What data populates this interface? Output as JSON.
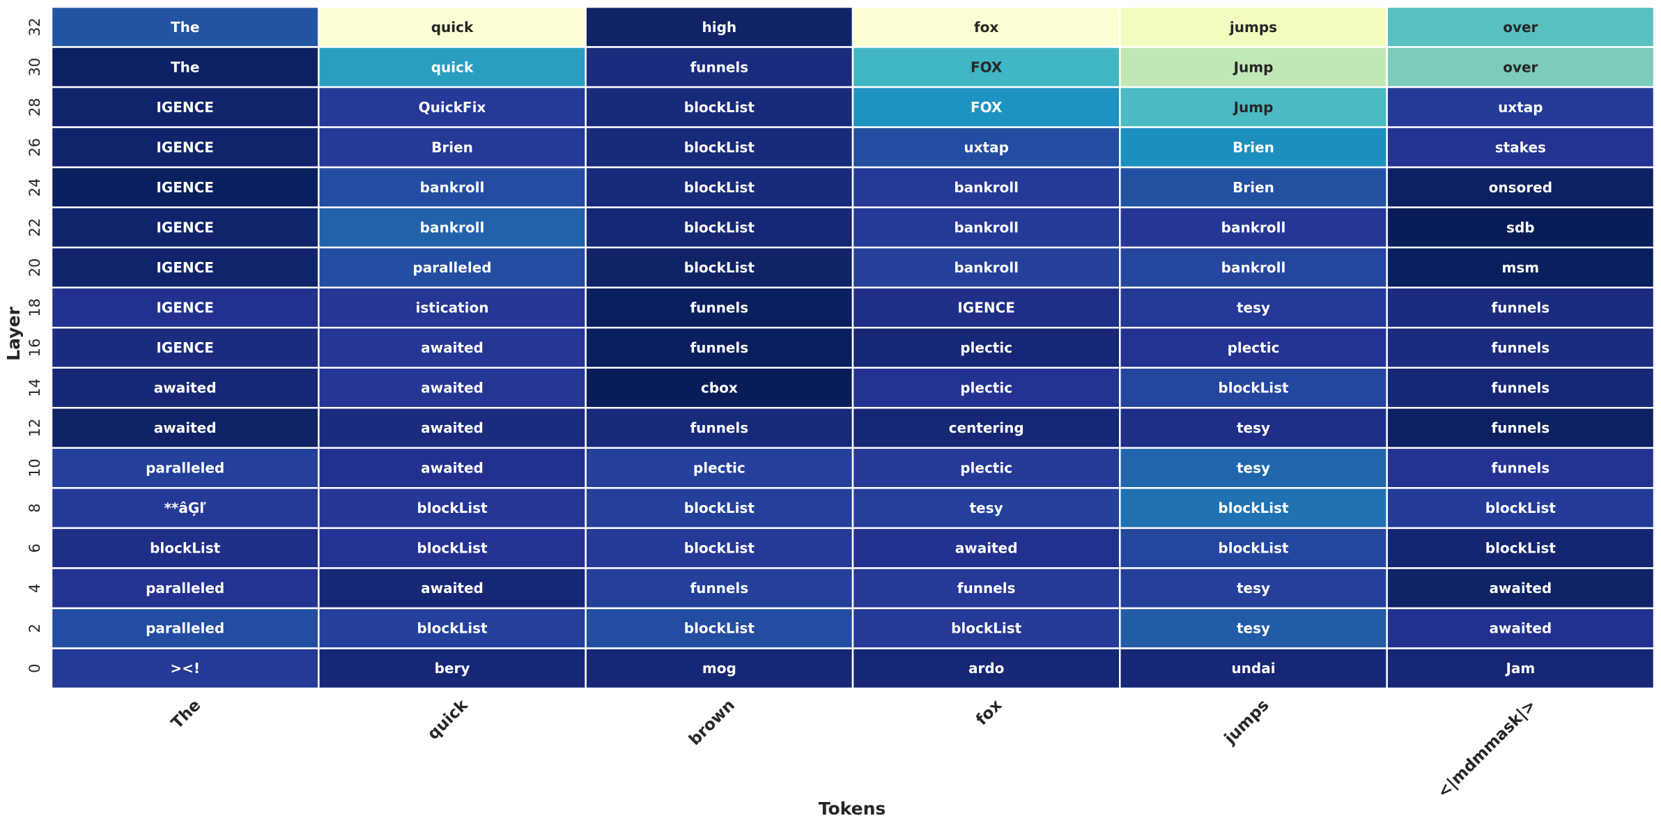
{
  "chart_data": {
    "type": "heatmap",
    "xlabel": "Tokens",
    "ylabel": "Layer",
    "x_tick_labels": [
      "The",
      "quick",
      "brown",
      "fox",
      "jumps",
      "<|mdmmask|>"
    ],
    "y_tick_labels": [
      "32",
      "30",
      "28",
      "26",
      "24",
      "22",
      "20",
      "18",
      "16",
      "14",
      "12",
      "10",
      "8",
      "6",
      "4",
      "2",
      "0"
    ],
    "colormap": "YlGnBu",
    "grid_color": "#ffffff",
    "dark_text_color": "#262626",
    "light_text_color": "#ffffff",
    "rows": [
      {
        "layer": "32",
        "tokens": [
          "The",
          "quick",
          "high",
          "fox",
          "jumps",
          "over"
        ],
        "intensity": [
          0.78,
          0.02,
          0.97,
          0.02,
          0.08,
          0.45
        ]
      },
      {
        "layer": "30",
        "tokens": [
          "The",
          "quick",
          "funnels",
          "FOX",
          "Jump",
          "over"
        ],
        "intensity": [
          0.98,
          0.58,
          0.92,
          0.5,
          0.26,
          0.38
        ]
      },
      {
        "layer": "28",
        "tokens": [
          "IGENCE",
          "QuickFix",
          "blockList",
          "FOX",
          "Jump",
          "uxtap"
        ],
        "intensity": [
          0.96,
          0.86,
          0.93,
          0.62,
          0.48,
          0.86
        ]
      },
      {
        "layer": "26",
        "tokens": [
          "IGENCE",
          "Brien",
          "blockList",
          "uxtap",
          "Brien",
          "stakes"
        ],
        "intensity": [
          0.96,
          0.86,
          0.93,
          0.8,
          0.63,
          0.88
        ]
      },
      {
        "layer": "24",
        "tokens": [
          "IGENCE",
          "bankroll",
          "blockList",
          "bankroll",
          "Brien",
          "onsored"
        ],
        "intensity": [
          0.99,
          0.8,
          0.93,
          0.86,
          0.79,
          0.98
        ]
      },
      {
        "layer": "22",
        "tokens": [
          "IGENCE",
          "bankroll",
          "blockList",
          "bankroll",
          "bankroll",
          "sdb"
        ],
        "intensity": [
          0.96,
          0.74,
          0.94,
          0.86,
          0.87,
          1.0
        ]
      },
      {
        "layer": "20",
        "tokens": [
          "IGENCE",
          "paralleled",
          "blockList",
          "bankroll",
          "bankroll",
          "msm"
        ],
        "intensity": [
          0.96,
          0.8,
          0.97,
          0.84,
          0.82,
          0.99
        ]
      },
      {
        "layer": "18",
        "tokens": [
          "IGENCE",
          "istication",
          "funnels",
          "IGENCE",
          "tesy",
          "funnels"
        ],
        "intensity": [
          0.89,
          0.87,
          0.99,
          0.9,
          0.86,
          0.92
        ]
      },
      {
        "layer": "16",
        "tokens": [
          "IGENCE",
          "awaited",
          "funnels",
          "plectic",
          "plectic",
          "funnels"
        ],
        "intensity": [
          0.92,
          0.87,
          0.99,
          0.94,
          0.88,
          0.92
        ]
      },
      {
        "layer": "14",
        "tokens": [
          "awaited",
          "awaited",
          "cbox",
          "plectic",
          "blockList",
          "funnels"
        ],
        "intensity": [
          0.94,
          0.87,
          1.0,
          0.88,
          0.82,
          0.94
        ]
      },
      {
        "layer": "12",
        "tokens": [
          "awaited",
          "awaited",
          "funnels",
          "centering",
          "tesy",
          "funnels"
        ],
        "intensity": [
          0.97,
          0.92,
          0.93,
          0.94,
          0.9,
          0.98
        ]
      },
      {
        "layer": "10",
        "tokens": [
          "paralleled",
          "awaited",
          "plectic",
          "plectic",
          "tesy",
          "funnels"
        ],
        "intensity": [
          0.84,
          0.89,
          0.84,
          0.86,
          0.73,
          0.88
        ]
      },
      {
        "layer": "8",
        "tokens": [
          "**âĢľ",
          "blockList",
          "blockList",
          "tesy",
          "blockList",
          "blockList"
        ],
        "intensity": [
          0.86,
          0.87,
          0.84,
          0.84,
          0.7,
          0.85
        ]
      },
      {
        "layer": "6",
        "tokens": [
          "blockList",
          "blockList",
          "blockList",
          "awaited",
          "blockList",
          "blockList"
        ],
        "intensity": [
          0.9,
          0.88,
          0.86,
          0.89,
          0.82,
          0.95
        ]
      },
      {
        "layer": "4",
        "tokens": [
          "paralleled",
          "awaited",
          "funnels",
          "funnels",
          "tesy",
          "awaited"
        ],
        "intensity": [
          0.88,
          0.94,
          0.84,
          0.86,
          0.84,
          0.97
        ]
      },
      {
        "layer": "2",
        "tokens": [
          "paralleled",
          "blockList",
          "blockList",
          "blockList",
          "tesy",
          "awaited"
        ],
        "intensity": [
          0.8,
          0.84,
          0.8,
          0.86,
          0.76,
          0.89
        ]
      },
      {
        "layer": "0",
        "tokens": [
          "><!",
          "bery",
          "mog",
          "ardo",
          "undai",
          "Jam"
        ],
        "intensity": [
          0.86,
          0.94,
          0.94,
          0.94,
          0.94,
          0.94
        ]
      }
    ]
  }
}
